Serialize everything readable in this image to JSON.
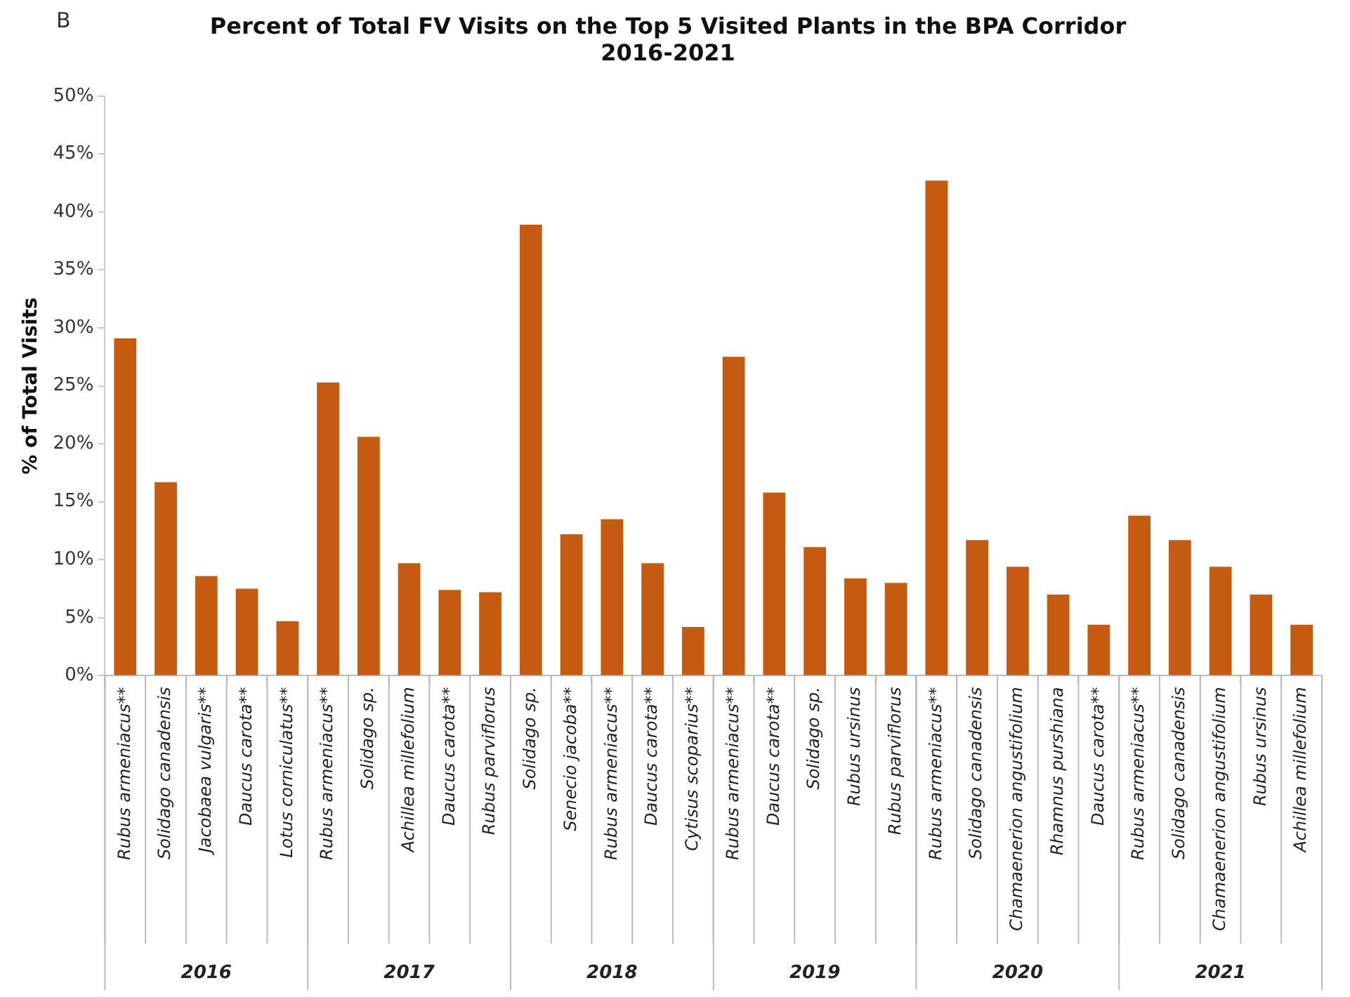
{
  "chart_data": {
    "type": "bar",
    "title": "Percent of Total FV Visits on the Top 5 Visited Plants in the BPA Corridor\n2016-2021",
    "ylabel": "% of Total Visits",
    "categories": [
      "Rubus armeniacus**",
      "Solidago canadensis",
      "Jacobaea vulgaris**",
      "Daucus carota**",
      "Lotus corniculatus**",
      "Rubus armeniacus**",
      "Solidago sp.",
      "Achillea millefolium",
      "Daucus carota**",
      "Rubus parviflorus",
      "Solidago sp.",
      "Senecio jacoba**",
      "Rubus armeniacus**",
      "Daucus carota**",
      "Cytisus scoparius**",
      "Rubus armeniacus**",
      "Daucus carota**",
      "Solidago sp.",
      "Rubus ursinus",
      "Rubus parviflorus",
      "Rubus armeniacus**",
      "Solidago canadensis",
      "Chamaenerion angustifolium",
      "Rhamnus purshiana",
      "Daucus carota**",
      "Rubus armeniacus**",
      "Solidago canadensis",
      "Chamaenerion angustifolium",
      "Rubus ursinus",
      "Achillea millefolium"
    ],
    "values": [
      29.1,
      16.7,
      8.6,
      7.5,
      4.7,
      25.3,
      20.6,
      9.7,
      7.4,
      7.2,
      38.9,
      12.2,
      13.5,
      9.7,
      4.2,
      27.5,
      15.8,
      11.1,
      8.4,
      8.0,
      42.7,
      11.7,
      9.4,
      7.0,
      4.4,
      13.8,
      11.7,
      9.4,
      7.0,
      4.4
    ],
    "color": "#c55a11",
    "ylim": [
      0,
      50
    ],
    "yticks": [
      {
        "value": 0,
        "label": "0%"
      },
      {
        "value": 5,
        "label": "5%"
      },
      {
        "value": 10,
        "label": "10%"
      },
      {
        "value": 15,
        "label": "15%"
      },
      {
        "value": 20,
        "label": "20%"
      },
      {
        "value": 25,
        "label": "25%"
      },
      {
        "value": 30,
        "label": "30%"
      },
      {
        "value": 35,
        "label": "35%"
      },
      {
        "value": 40,
        "label": "40%"
      },
      {
        "value": 45,
        "label": "45%"
      },
      {
        "value": 50,
        "label": "50%"
      }
    ],
    "grid": false,
    "legend": false,
    "annotations": [
      "B",
      "2016",
      "2017",
      "2018",
      "2019",
      "2020",
      "2021"
    ]
  }
}
